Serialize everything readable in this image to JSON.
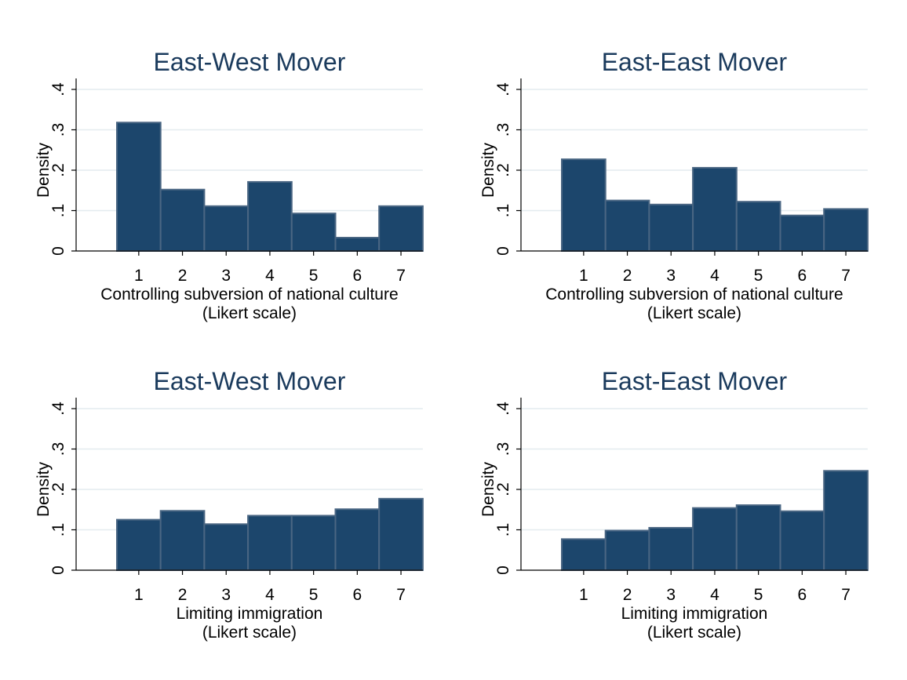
{
  "colors": {
    "bar_fill": "#1c466c",
    "bar_edge": "#4a6683",
    "title": "#1a3a5c",
    "grid": "#e4ecef"
  },
  "chart_data": [
    {
      "type": "bar",
      "title": "East-West Mover",
      "ylabel": "Density",
      "xlabel_line1": "Controlling subversion of national culture",
      "xlabel_line2": "(Likert scale)",
      "categories": [
        "1",
        "2",
        "3",
        "4",
        "5",
        "6",
        "7"
      ],
      "values": [
        0.318,
        0.152,
        0.111,
        0.171,
        0.093,
        0.033,
        0.111
      ],
      "ylim": [
        0,
        0.4
      ],
      "yticks": [
        "0",
        ".1",
        ".2",
        ".3",
        ".4"
      ],
      "grid": true
    },
    {
      "type": "bar",
      "title": "East-East Mover",
      "ylabel": "Density",
      "xlabel_line1": "Controlling subversion of national culture",
      "xlabel_line2": "(Likert scale)",
      "categories": [
        "1",
        "2",
        "3",
        "4",
        "5",
        "6",
        "7"
      ],
      "values": [
        0.227,
        0.125,
        0.115,
        0.206,
        0.122,
        0.088,
        0.104
      ],
      "ylim": [
        0,
        0.4
      ],
      "yticks": [
        "0",
        ".1",
        ".2",
        ".3",
        ".4"
      ],
      "grid": true
    },
    {
      "type": "bar",
      "title": "East-West Mover",
      "ylabel": "Density",
      "xlabel_line1": "Limiting immigration",
      "xlabel_line2": "(Likert scale)",
      "categories": [
        "1",
        "2",
        "3",
        "4",
        "5",
        "6",
        "7"
      ],
      "values": [
        0.125,
        0.147,
        0.114,
        0.135,
        0.135,
        0.151,
        0.177
      ],
      "ylim": [
        0,
        0.4
      ],
      "yticks": [
        "0",
        ".1",
        ".2",
        ".3",
        ".4"
      ],
      "grid": true
    },
    {
      "type": "bar",
      "title": "East-East Mover",
      "ylabel": "Density",
      "xlabel_line1": "Limiting immigration",
      "xlabel_line2": "(Likert scale)",
      "categories": [
        "1",
        "2",
        "3",
        "4",
        "5",
        "6",
        "7"
      ],
      "values": [
        0.077,
        0.098,
        0.105,
        0.154,
        0.161,
        0.146,
        0.246
      ],
      "ylim": [
        0,
        0.4
      ],
      "yticks": [
        "0",
        ".1",
        ".2",
        ".3",
        ".4"
      ],
      "grid": true
    }
  ]
}
